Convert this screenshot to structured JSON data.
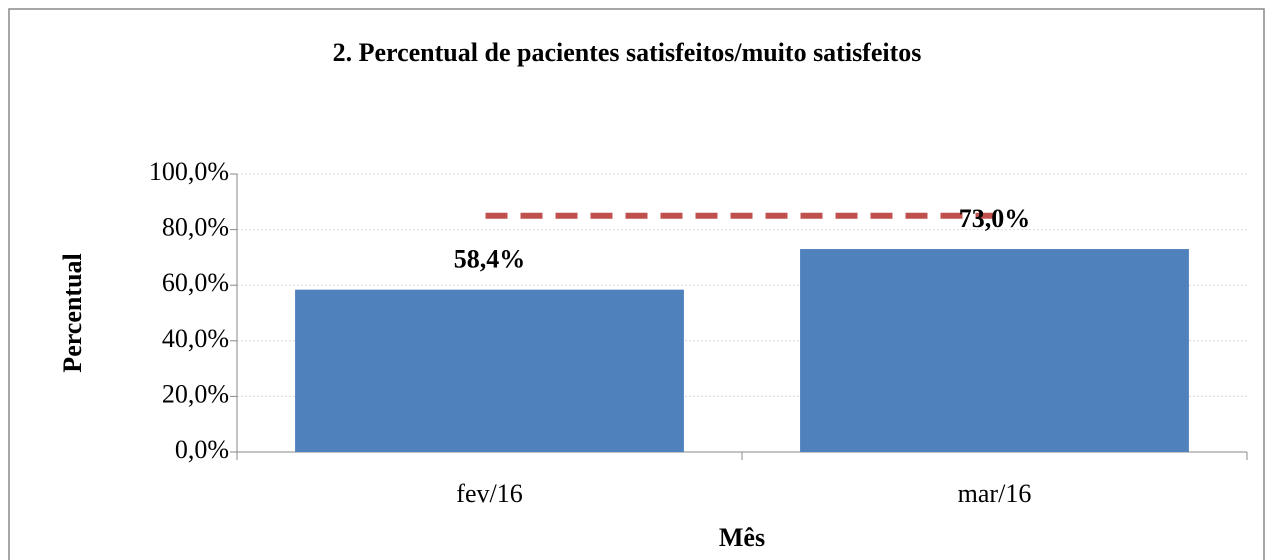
{
  "chart_data": {
    "type": "bar",
    "title": "2. Percentual de pacientes satisfeitos/muito  satisfeitos",
    "x_label": "Mês",
    "y_label": "Percentual",
    "categories": [
      "fev/16",
      "mar/16"
    ],
    "values": [
      58.4,
      73.0
    ],
    "value_labels": [
      "58,4%",
      "73,0%"
    ],
    "color": "#4f81bd",
    "reference_line": {
      "value": 85,
      "color": "#c0504d"
    },
    "ylim": [
      0,
      100
    ],
    "yticks": [
      {
        "value": 0,
        "label": "0,0%"
      },
      {
        "value": 20,
        "label": "20,0%"
      },
      {
        "value": 40,
        "label": "40,0%"
      },
      {
        "value": 60,
        "label": "60,0%"
      },
      {
        "value": 80,
        "label": "80,0%"
      },
      {
        "value": 100,
        "label": "100,0%"
      }
    ],
    "grid": true
  }
}
